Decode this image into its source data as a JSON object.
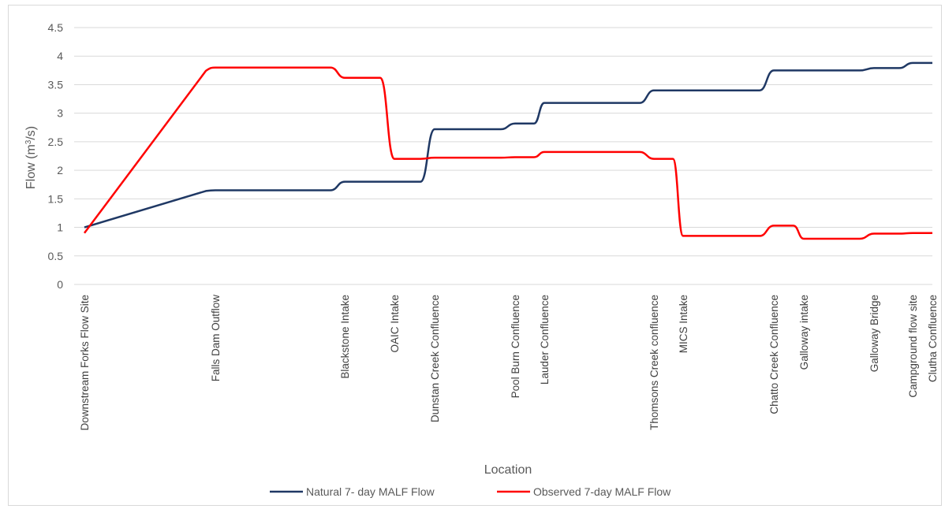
{
  "chart_data": {
    "type": "line",
    "title": "",
    "xlabel": "Location",
    "ylabel_main": "Flow (m",
    "ylabel_sup": "3",
    "ylabel_tail": "/s)",
    "ylim": [
      0,
      4.5
    ],
    "yticks": [
      0,
      0.5,
      1,
      1.5,
      2,
      2.5,
      3,
      3.5,
      4,
      4.5
    ],
    "ytick_labels": [
      "0",
      "0.5",
      "1",
      "1.5",
      "2",
      "2.5",
      "3",
      "3.5",
      "4",
      "4.5"
    ],
    "grid": "horizontal",
    "legend_position": "bottom",
    "categories": [
      "Downstream Forks Flow Site",
      "Falls Dam Outflow",
      "Blackstone Intake",
      "OAIC Intake",
      "Dunstan Creek Confluence",
      "Pool Burn Confluence",
      "Lauder Confluence",
      "Thomsons Creek confluence",
      "MICS Intake",
      "Chatto Creek Confluence",
      "Galloway intake",
      "Galloway Bridge",
      "Campground flow site",
      "Clutha Confluence"
    ],
    "series": [
      {
        "name": "Natural 7- day MALF Flow",
        "color": "#1f3864",
        "values": [
          1.0,
          1.65,
          1.8,
          1.8,
          2.72,
          2.82,
          3.18,
          3.4,
          3.4,
          3.75,
          3.75,
          3.79,
          3.88,
          3.88
        ]
      },
      {
        "name": "Observed 7-day MALF Flow",
        "color": "#ff0000",
        "values": [
          0.9,
          3.8,
          3.62,
          2.2,
          2.22,
          2.23,
          2.32,
          2.2,
          0.85,
          1.03,
          0.8,
          0.89,
          0.9,
          0.9
        ]
      }
    ]
  }
}
